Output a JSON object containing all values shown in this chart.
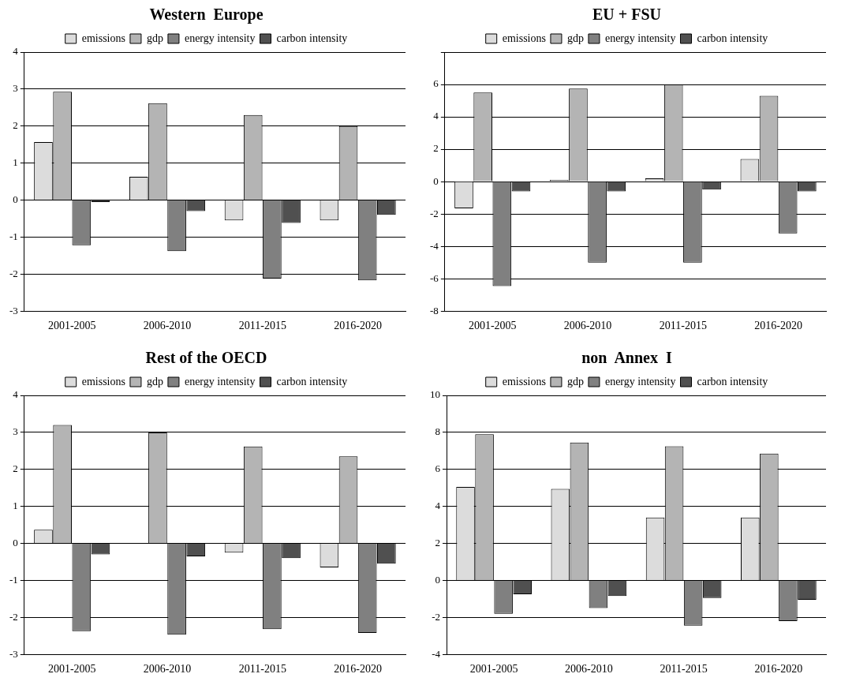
{
  "chart_data": [
    {
      "type": "bar",
      "title": "Western  Europe",
      "categories": [
        "2001-2005",
        "2006-2010",
        "2011-2015",
        "2016-2020"
      ],
      "series": [
        {
          "name": "emissions",
          "color": "#dcdcdc",
          "values": [
            1.57,
            0.63,
            -0.55,
            -0.55
          ]
        },
        {
          "name": "gdp",
          "color": "#b4b4b4",
          "values": [
            2.93,
            2.62,
            2.3,
            2.0
          ]
        },
        {
          "name": "energy intensity",
          "color": "#808080",
          "values": [
            -1.22,
            -1.38,
            -2.12,
            -2.17
          ]
        },
        {
          "name": "carbon intensity",
          "color": "#505050",
          "values": [
            -0.05,
            -0.3,
            -0.62,
            -0.4
          ]
        }
      ],
      "ylim": [
        -3,
        4
      ],
      "yticks": [
        -3,
        -2,
        -1,
        0,
        1,
        2,
        3,
        4
      ],
      "grid": "y",
      "legend": "top"
    },
    {
      "type": "bar",
      "title": "EU + FSU",
      "categories": [
        "2001-2005",
        "2006-2010",
        "2011-2015",
        "2016-2020"
      ],
      "series": [
        {
          "name": "emissions",
          "color": "#dcdcdc",
          "values": [
            -1.65,
            0.1,
            0.2,
            1.4
          ]
        },
        {
          "name": "gdp",
          "color": "#b4b4b4",
          "values": [
            5.5,
            5.75,
            6.0,
            5.3
          ]
        },
        {
          "name": "energy intensity",
          "color": "#808080",
          "values": [
            -6.45,
            -5.0,
            -5.0,
            -3.2
          ]
        },
        {
          "name": "carbon intensity",
          "color": "#505050",
          "values": [
            -0.6,
            -0.6,
            -0.5,
            -0.6
          ]
        }
      ],
      "ylim": [
        -8,
        8
      ],
      "yticks": [
        -8,
        -6,
        -4,
        -2,
        0,
        2,
        4,
        6,
        {
          "value": 8,
          "label": null
        }
      ],
      "grid": "y",
      "legend": "top"
    },
    {
      "type": "bar",
      "title": "Rest of the OECD",
      "categories": [
        "2001-2005",
        "2006-2010",
        "2011-2015",
        "2016-2020"
      ],
      "series": [
        {
          "name": "emissions",
          "color": "#dcdcdc",
          "values": [
            0.37,
            0.01,
            -0.25,
            -0.65
          ]
        },
        {
          "name": "gdp",
          "color": "#b4b4b4",
          "values": [
            3.2,
            3.0,
            2.62,
            2.35
          ]
        },
        {
          "name": "energy intensity",
          "color": "#808080",
          "values": [
            -2.37,
            -2.47,
            -2.32,
            -2.42
          ]
        },
        {
          "name": "carbon intensity",
          "color": "#505050",
          "values": [
            -0.3,
            -0.35,
            -0.4,
            -0.55
          ]
        }
      ],
      "ylim": [
        -3,
        4
      ],
      "yticks": [
        -3,
        -2,
        -1,
        0,
        1,
        2,
        3,
        4
      ],
      "grid": "y",
      "legend": "top"
    },
    {
      "type": "bar",
      "title": "non  Annex  I",
      "categories": [
        "2001-2005",
        "2006-2010",
        "2011-2015",
        "2016-2020"
      ],
      "series": [
        {
          "name": "emissions",
          "color": "#dcdcdc",
          "values": [
            5.05,
            4.95,
            3.4,
            3.4
          ]
        },
        {
          "name": "gdp",
          "color": "#b4b4b4",
          "values": [
            7.9,
            7.45,
            7.25,
            6.85
          ]
        },
        {
          "name": "energy intensity",
          "color": "#808080",
          "values": [
            -1.8,
            -1.5,
            -2.45,
            -2.2
          ]
        },
        {
          "name": "carbon intensity",
          "color": "#505050",
          "values": [
            -0.75,
            -0.85,
            -0.95,
            -1.05
          ]
        }
      ],
      "ylim": [
        -4,
        10
      ],
      "yticks": [
        -4,
        -2,
        0,
        2,
        4,
        6,
        8,
        10
      ],
      "grid": "y",
      "legend": "top"
    }
  ]
}
